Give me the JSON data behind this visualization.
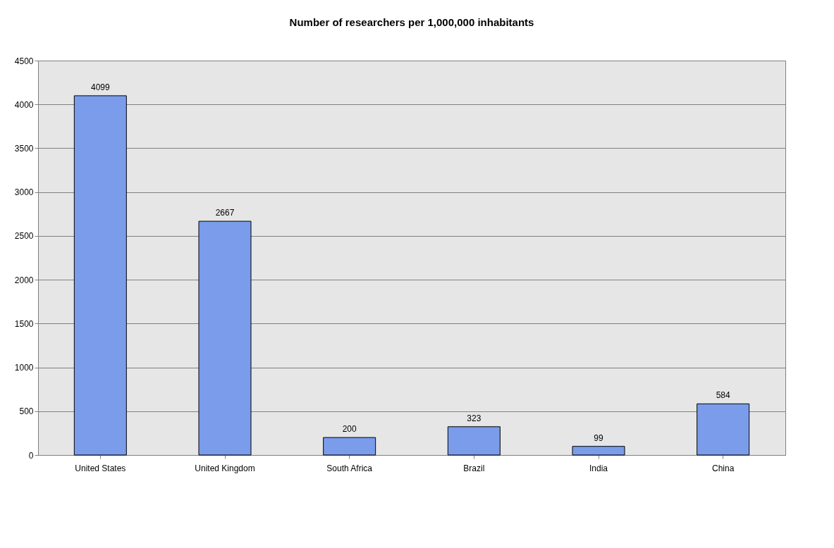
{
  "chart_data": {
    "type": "bar",
    "title": "Number of researchers per 1,000,000 inhabitants",
    "categories": [
      "United States",
      "United Kingdom",
      "South Africa",
      "Brazil",
      "India",
      "China"
    ],
    "values": [
      4099,
      2667,
      200,
      323,
      99,
      584
    ],
    "color": "#7a9cea",
    "ylim": [
      0,
      4500
    ],
    "yticks": [
      0,
      500,
      1000,
      1500,
      2000,
      2500,
      3000,
      3500,
      4000,
      4500
    ],
    "grid": "y",
    "data_labels": true
  }
}
